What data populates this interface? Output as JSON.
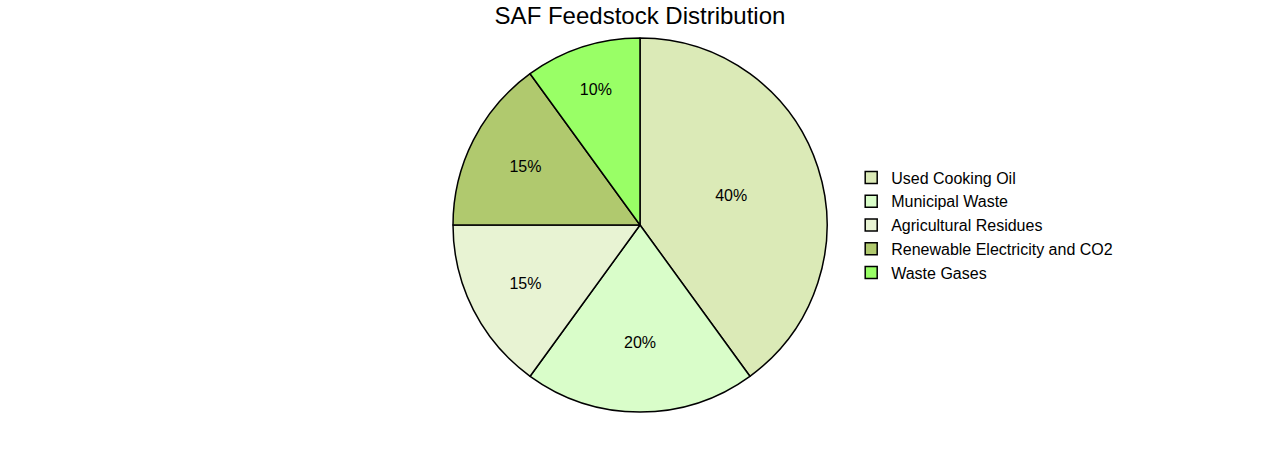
{
  "chart_data": {
    "type": "pie",
    "title": "SAF Feedstock Distribution",
    "categories": [
      "Used Cooking Oil",
      "Municipal Waste",
      "Agricultural Residues",
      "Renewable Electricity and CO2",
      "Waste Gases"
    ],
    "values": [
      40,
      20,
      15,
      15,
      10
    ],
    "value_labels": [
      "40%",
      "20%",
      "15%",
      "15%",
      "10%"
    ],
    "colors": [
      "#dbeab7",
      "#d9fdc9",
      "#e8f3d3",
      "#b0c96e",
      "#99ff66"
    ],
    "data_labels": true,
    "legend": "right"
  }
}
